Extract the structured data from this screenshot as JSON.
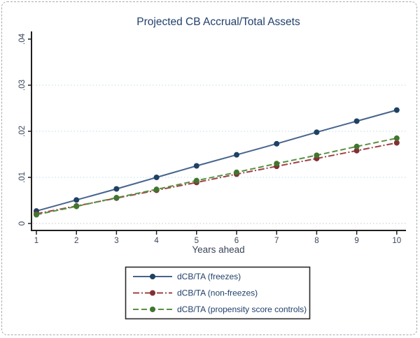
{
  "window": {
    "background": "#ffffff",
    "border_color": "#a6aab0"
  },
  "chart_data": {
    "type": "line",
    "title": "Projected CB Accrual/Total Assets",
    "xlabel": "Years ahead",
    "ylabel": "",
    "x": [
      1,
      2,
      3,
      4,
      5,
      6,
      7,
      8,
      9,
      10
    ],
    "x_tick_labels": [
      "1",
      "2",
      "3",
      "4",
      "5",
      "6",
      "7",
      "8",
      "9",
      "10"
    ],
    "y_ticks": [
      0,
      0.01,
      0.02,
      0.03,
      0.04
    ],
    "y_tick_labels": [
      "0",
      ".01",
      ".02",
      ".03",
      ".04"
    ],
    "xlim": [
      1,
      10
    ],
    "ylim": [
      0,
      0.04
    ],
    "grid": "horizontal dotted lines at 0, .01, .02, .03 (none at .04)",
    "legend_position": "bottom-center, boxed",
    "series": [
      {
        "name": "dCB/TA (freezes)",
        "color": "#46648c",
        "marker_color": "#1e4164",
        "marker": "circle",
        "dash": "none",
        "values": [
          0.0027,
          0.0051,
          0.0075,
          0.01,
          0.0125,
          0.0149,
          0.0173,
          0.0198,
          0.0222,
          0.0246
        ]
      },
      {
        "name": "dCB/TA (non-freezes)",
        "color": "#9e4146",
        "marker_color": "#832f34",
        "marker": "circle",
        "dash": "9 3 2 3",
        "values": [
          0.0021,
          0.0038,
          0.0055,
          0.0072,
          0.0089,
          0.0107,
          0.0124,
          0.0141,
          0.0158,
          0.0175
        ]
      },
      {
        "name": "dCB/TA (propensity score controls)",
        "color": "#579140",
        "marker_color": "#41762e",
        "marker": "circle",
        "dash": "8 4",
        "values": [
          0.0019,
          0.0037,
          0.0056,
          0.0074,
          0.0093,
          0.0111,
          0.013,
          0.0148,
          0.0167,
          0.0185
        ]
      }
    ],
    "grid_color": "#bcdce8",
    "zero_grid_color": "#c4c4c4",
    "axis_color": "#1f1f1f",
    "title_color": "#21406b",
    "label_color": "#39465a",
    "legend_text_color": "#21406b",
    "legend_border_color": "#2a2a2a"
  }
}
